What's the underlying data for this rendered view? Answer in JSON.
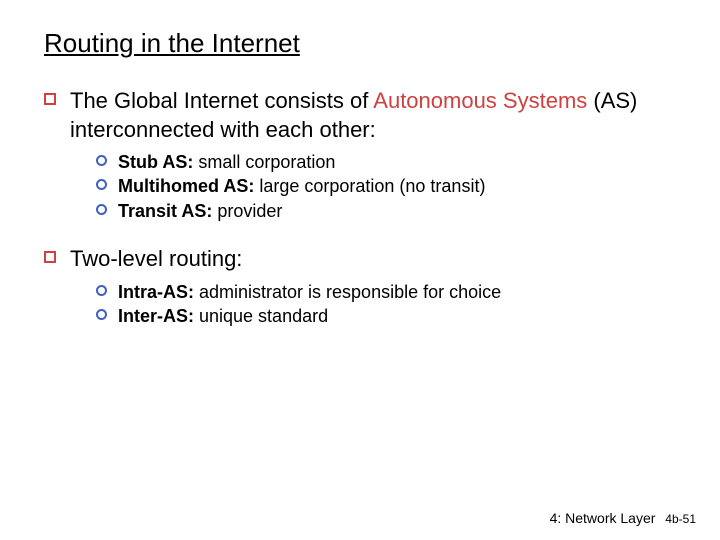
{
  "title": "Routing in the Internet",
  "colors": {
    "accent_red": "#d04040",
    "accent_blue": "#4060c0",
    "text": "#000000",
    "background": "#ffffff"
  },
  "bullets": [
    {
      "pre": "The Global Internet consists of ",
      "accent": "Autonomous Systems",
      "post": " (AS) interconnected with each other:",
      "sub": [
        {
          "bold": "Stub AS:",
          "rest": " small corporation"
        },
        {
          "bold": "Multihomed AS:",
          "rest": " large corporation (no transit)"
        },
        {
          "bold": "Transit AS:",
          "rest": " provider"
        }
      ]
    },
    {
      "pre": "Two-level routing:",
      "accent": "",
      "post": "",
      "sub": [
        {
          "bold": "Intra-AS:",
          "rest": " administrator is responsible for choice"
        },
        {
          "bold": "Inter-AS:",
          "rest": " unique standard"
        }
      ]
    }
  ],
  "footer": {
    "chapter": "4: Network Layer",
    "page": "4b-51"
  }
}
